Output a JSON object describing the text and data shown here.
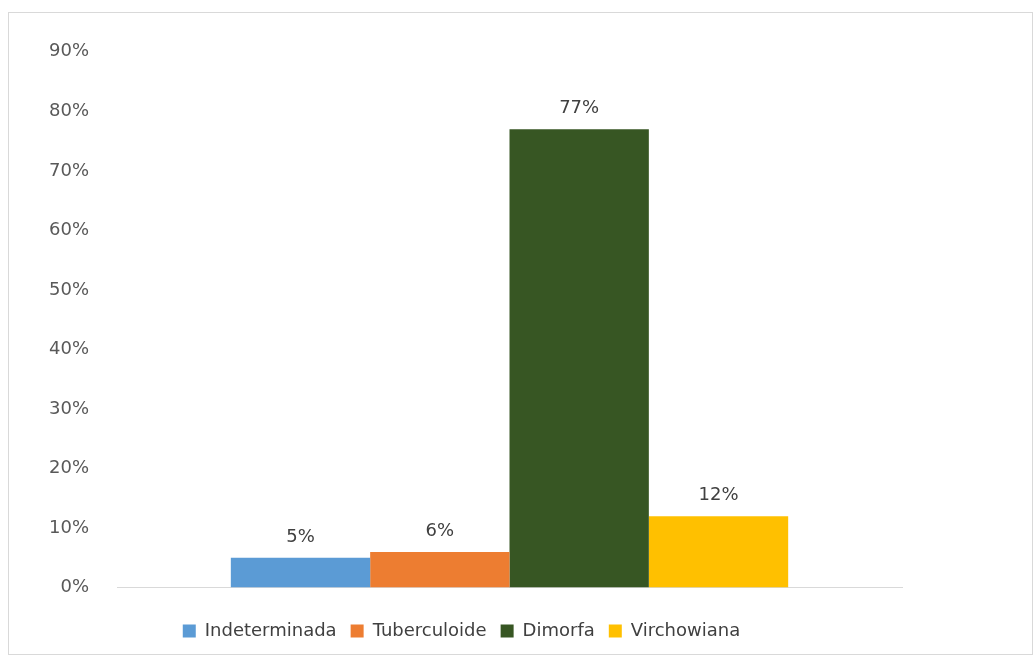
{
  "chart_data": {
    "type": "bar",
    "categories": [
      null
    ],
    "series": [
      {
        "name": "Indeterminada",
        "color": "#5b9bd5",
        "values": [
          5
        ],
        "value_labels": [
          "5%"
        ]
      },
      {
        "name": "Tuberculoide",
        "color": "#ed7d31",
        "values": [
          6
        ],
        "value_labels": [
          "6%"
        ]
      },
      {
        "name": "Dimorfa",
        "color": "#375623",
        "values": [
          77
        ],
        "value_labels": [
          "77%"
        ]
      },
      {
        "name": "Virchowiana",
        "color": "#ffc000",
        "values": [
          12
        ],
        "value_labels": [
          "12%"
        ]
      }
    ],
    "ylim": [
      0,
      90
    ],
    "yticks": [
      {
        "value": 0,
        "label": "0%"
      },
      {
        "value": 10,
        "label": "10%"
      },
      {
        "value": 20,
        "label": "20%"
      },
      {
        "value": 30,
        "label": "30%"
      },
      {
        "value": 40,
        "label": "40%"
      },
      {
        "value": 50,
        "label": "50%"
      },
      {
        "value": 60,
        "label": "60%"
      },
      {
        "value": 70,
        "label": "70%"
      },
      {
        "value": 80,
        "label": "80%"
      },
      {
        "value": 90,
        "label": "90%"
      }
    ],
    "grid": false,
    "legend": "bottom"
  }
}
